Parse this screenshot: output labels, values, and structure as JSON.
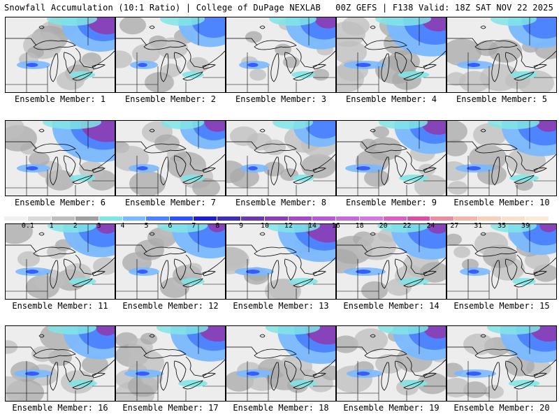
{
  "header": {
    "left": "Snowfall Accumulation (10:1 Ratio) | College of DuPage NEXLAB",
    "right": "00Z GEFS | F138 Valid: 18Z SAT NOV 22 2025"
  },
  "legend": {
    "labels": [
      "0.1",
      "1",
      "2",
      "3",
      "4",
      "5",
      "6",
      "7",
      "8",
      "9",
      "10",
      "12",
      "14",
      "16",
      "18",
      "20",
      "22",
      "24",
      "27",
      "31",
      "35",
      "39"
    ],
    "colors": [
      "#f0f0f0",
      "#d9d9d9",
      "#bdbdbd",
      "#a0a0a0",
      "#80e5e5",
      "#7ab8ff",
      "#4b82ff",
      "#2f52ff",
      "#1f1fd0",
      "#4030b0",
      "#6a3aa6",
      "#8a3fb5",
      "#a24bc5",
      "#b55bd0",
      "#c36bd8",
      "#d07adc",
      "#d860c0",
      "#d84fa6",
      "#e78fa0",
      "#f0b8a8",
      "#f6d0b8",
      "#f8e0cc",
      "#fbeadc"
    ]
  },
  "panels": [
    {
      "caption": "Ensemble Member: 1",
      "intensity": 0.55,
      "purple": 0.7,
      "lake": 0.3
    },
    {
      "caption": "Ensemble Member: 2",
      "intensity": 0.35,
      "purple": 0.0,
      "lake": 0.1
    },
    {
      "caption": "Ensemble Member: 3",
      "intensity": 0.45,
      "purple": 0.3,
      "lake": 0.2
    },
    {
      "caption": "Ensemble Member: 4",
      "intensity": 0.75,
      "purple": 0.5,
      "lake": 0.6
    },
    {
      "caption": "Ensemble Member: 5",
      "intensity": 0.4,
      "purple": 0.0,
      "lake": 0.4
    },
    {
      "caption": "Ensemble Member: 6",
      "intensity": 0.85,
      "purple": 1.0,
      "lake": 0.3
    },
    {
      "caption": "Ensemble Member: 7",
      "intensity": 0.3,
      "purple": 0.3,
      "lake": 0.2
    },
    {
      "caption": "Ensemble Member: 8",
      "intensity": 0.2,
      "purple": 0.0,
      "lake": 0.1
    },
    {
      "caption": "Ensemble Member: 9",
      "intensity": 0.5,
      "purple": 0.5,
      "lake": 0.5
    },
    {
      "caption": "Ensemble Member: 10",
      "intensity": 0.6,
      "purple": 0.3,
      "lake": 0.5
    },
    {
      "caption": "Ensemble Member: 11",
      "intensity": 0.5,
      "purple": 0.2,
      "lake": 0.4
    },
    {
      "caption": "Ensemble Member: 12",
      "intensity": 0.55,
      "purple": 0.1,
      "lake": 0.2
    },
    {
      "caption": "Ensemble Member: 13",
      "intensity": 0.7,
      "purple": 0.8,
      "lake": 0.5
    },
    {
      "caption": "Ensemble Member: 14",
      "intensity": 0.6,
      "purple": 0.2,
      "lake": 0.6
    },
    {
      "caption": "Ensemble Member: 15",
      "intensity": 0.4,
      "purple": 0.1,
      "lake": 0.2
    },
    {
      "caption": "Ensemble Member: 16",
      "intensity": 0.5,
      "purple": 0.2,
      "lake": 0.5
    },
    {
      "caption": "Ensemble Member: 17",
      "intensity": 0.6,
      "purple": 0.6,
      "lake": 0.5
    },
    {
      "caption": "Ensemble Member: 18",
      "intensity": 0.7,
      "purple": 0.8,
      "lake": 0.4
    },
    {
      "caption": "Ensemble Member: 19",
      "intensity": 0.55,
      "purple": 0.4,
      "lake": 0.4
    },
    {
      "caption": "Ensemble Member: 20",
      "intensity": 0.65,
      "purple": 0.6,
      "lake": 0.6
    }
  ]
}
